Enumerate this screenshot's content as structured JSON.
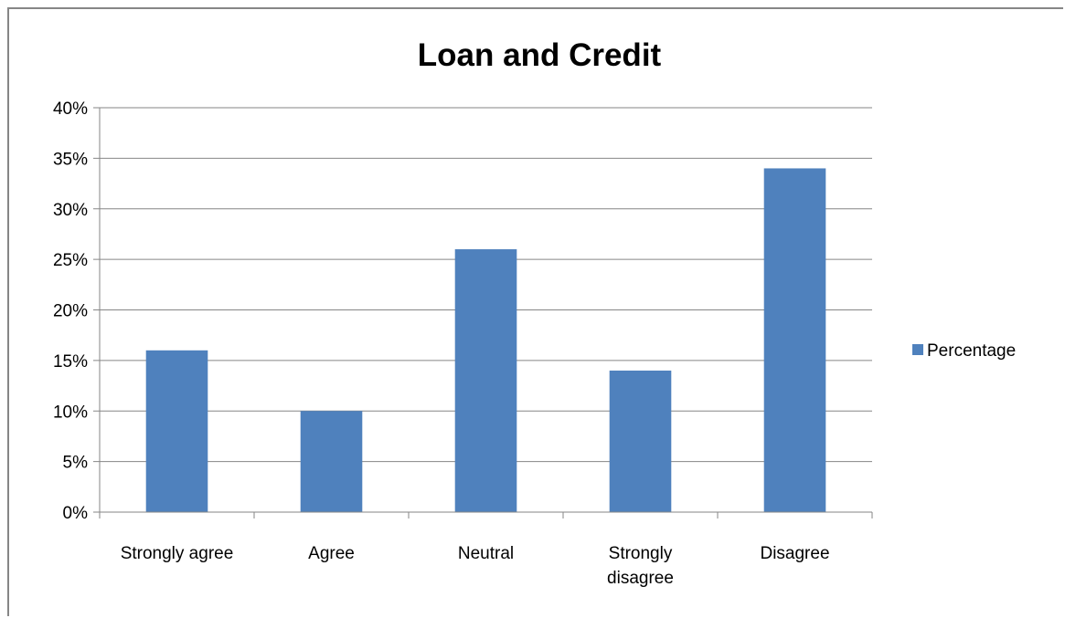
{
  "chart_data": {
    "type": "bar",
    "title": "Loan and Credit",
    "categories": [
      [
        "Strongly agree"
      ],
      [
        "Agree"
      ],
      [
        "Neutral"
      ],
      [
        "Strongly",
        "disagree"
      ],
      [
        "Disagree"
      ]
    ],
    "series": [
      {
        "name": "Percentage",
        "color": "#4f81bd",
        "values": [
          16,
          10,
          26,
          14,
          34
        ]
      }
    ],
    "y_ticks": [
      "0%",
      "5%",
      "10%",
      "15%",
      "20%",
      "25%",
      "30%",
      "35%",
      "40%"
    ],
    "ylim": [
      0,
      40
    ],
    "y_unit": "percent",
    "gridlines": true,
    "legend_position": "right",
    "xlabel": "",
    "ylabel": ""
  }
}
